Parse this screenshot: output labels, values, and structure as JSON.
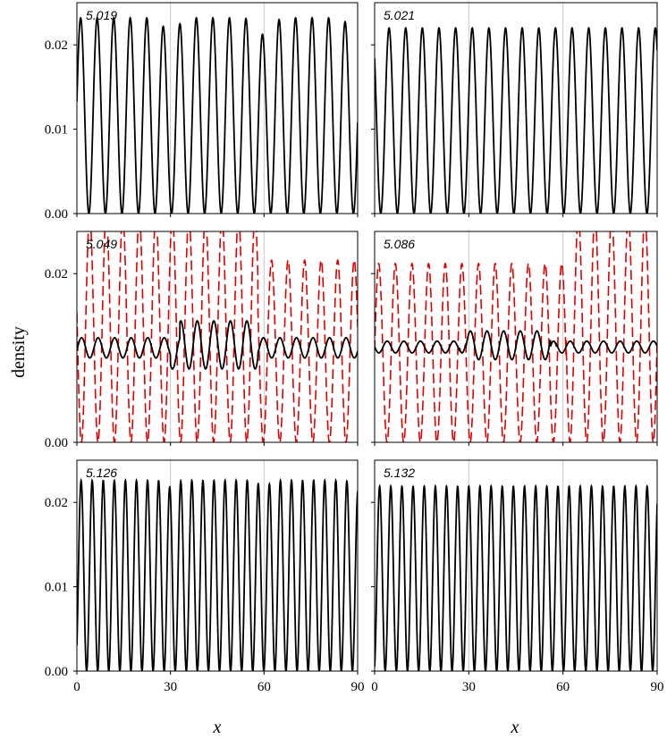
{
  "figure": {
    "ylabel": "density",
    "xlabel": "x"
  },
  "colors": {
    "solid": "#000000",
    "dashed": "#e00000",
    "grid": "#c8c8c8",
    "frame": "#000000"
  },
  "chart_data": [
    {
      "type": "line",
      "panel": "top-left",
      "label": "5.019",
      "xlim": [
        0,
        90
      ],
      "ylim": [
        0,
        0.025
      ],
      "xticks": [
        "0",
        "30",
        "60",
        "90"
      ],
      "yticks": [
        "0.00",
        "0.01",
        "0.02"
      ],
      "show_x_ticklabels": false,
      "show_y_ticklabels": true,
      "grid_x": [
        30,
        60
      ],
      "series": [
        {
          "style": "solid",
          "color": "#000000",
          "period": 5.3,
          "phase": 1.2,
          "min": 0.0,
          "max": 0.0232,
          "dips": [
            [
              30,
              0.0215
            ],
            [
              60,
              0.0212
            ],
            [
              90,
              0.021
            ]
          ]
        }
      ]
    },
    {
      "type": "line",
      "panel": "top-right",
      "label": "5.021",
      "xlim": [
        0,
        90
      ],
      "ylim": [
        0,
        0.025
      ],
      "xticks": [
        "0",
        "30",
        "60",
        "90"
      ],
      "yticks": [
        "0.00",
        "0.01",
        "0.02"
      ],
      "show_x_ticklabels": false,
      "show_y_ticklabels": false,
      "grid_x": [
        30,
        60
      ],
      "series": [
        {
          "style": "solid",
          "color": "#000000",
          "period": 5.3,
          "phase": 4.6,
          "min": 0.0,
          "max": 0.022,
          "dips": []
        }
      ]
    },
    {
      "type": "line",
      "panel": "middle-left",
      "label": "5.049",
      "xlim": [
        0,
        90
      ],
      "ylim": [
        0,
        0.025
      ],
      "xticks": [
        "0",
        "30",
        "60",
        "90"
      ],
      "yticks": [
        "0.00",
        "0.02"
      ],
      "show_x_ticklabels": false,
      "show_y_ticklabels": true,
      "grid_x": [
        30,
        60
      ],
      "series": [
        {
          "style": "dashed",
          "color": "#e00000",
          "period": 5.3,
          "phase": 4.1,
          "min": 0.0,
          "max": 0.0216,
          "bumps": [
            [
              0,
              58,
              0.0268
            ]
          ]
        },
        {
          "style": "solid",
          "color": "#000000",
          "period": 5.3,
          "phase": 1.5,
          "min": 0.01,
          "max": 0.0124,
          "bumps": [
            [
              33,
              58,
              0.0144
            ]
          ],
          "lows": [
            [
              30,
              58,
              0.0087
            ]
          ]
        }
      ]
    },
    {
      "type": "line",
      "panel": "middle-right",
      "label": "5.086",
      "xlim": [
        0,
        90
      ],
      "ylim": [
        0,
        0.025
      ],
      "xticks": [
        "0",
        "30",
        "60",
        "90"
      ],
      "yticks": [
        "0.00",
        "0.02"
      ],
      "show_x_ticklabels": false,
      "show_y_ticklabels": false,
      "grid_x": [
        30,
        60
      ],
      "series": [
        {
          "style": "dashed",
          "color": "#e00000",
          "period": 5.3,
          "phase": 1.3,
          "min": 0.0,
          "max": 0.0212,
          "bumps": [
            [
              61,
              90,
              0.0268
            ]
          ]
        },
        {
          "style": "solid",
          "color": "#000000",
          "period": 5.3,
          "phase": 4.0,
          "min": 0.0106,
          "max": 0.012,
          "bumps": [
            [
              27,
              56,
              0.0132
            ]
          ],
          "lows": [
            [
              29,
              58,
              0.0098
            ]
          ]
        }
      ]
    },
    {
      "type": "line",
      "panel": "bottom-left",
      "label": "5.126",
      "xlim": [
        0,
        90
      ],
      "ylim": [
        0,
        0.025
      ],
      "xticks": [
        "0",
        "30",
        "60",
        "90"
      ],
      "yticks": [
        "0.00",
        "0.01",
        "0.02"
      ],
      "show_x_ticklabels": true,
      "show_y_ticklabels": true,
      "grid_x": [
        30,
        60
      ],
      "series": [
        {
          "style": "solid",
          "color": "#000000",
          "period": 3.55,
          "phase": 1.35,
          "min": 0.0,
          "max": 0.0226,
          "dips": [
            [
              30,
              0.0218
            ],
            [
              60,
              0.0218
            ],
            [
              90,
              0.0215
            ]
          ]
        }
      ]
    },
    {
      "type": "line",
      "panel": "bottom-right",
      "label": "5.132",
      "xlim": [
        0,
        90
      ],
      "ylim": [
        0,
        0.025
      ],
      "xticks": [
        "0",
        "30",
        "60",
        "90"
      ],
      "yticks": [
        "0.00",
        "0.01",
        "0.02"
      ],
      "show_x_ticklabels": true,
      "show_y_ticklabels": false,
      "grid_x": [
        30,
        60
      ],
      "series": [
        {
          "style": "solid",
          "color": "#000000",
          "period": 3.55,
          "phase": 1.6,
          "min": 0.0,
          "max": 0.0219,
          "dips": []
        }
      ]
    }
  ]
}
